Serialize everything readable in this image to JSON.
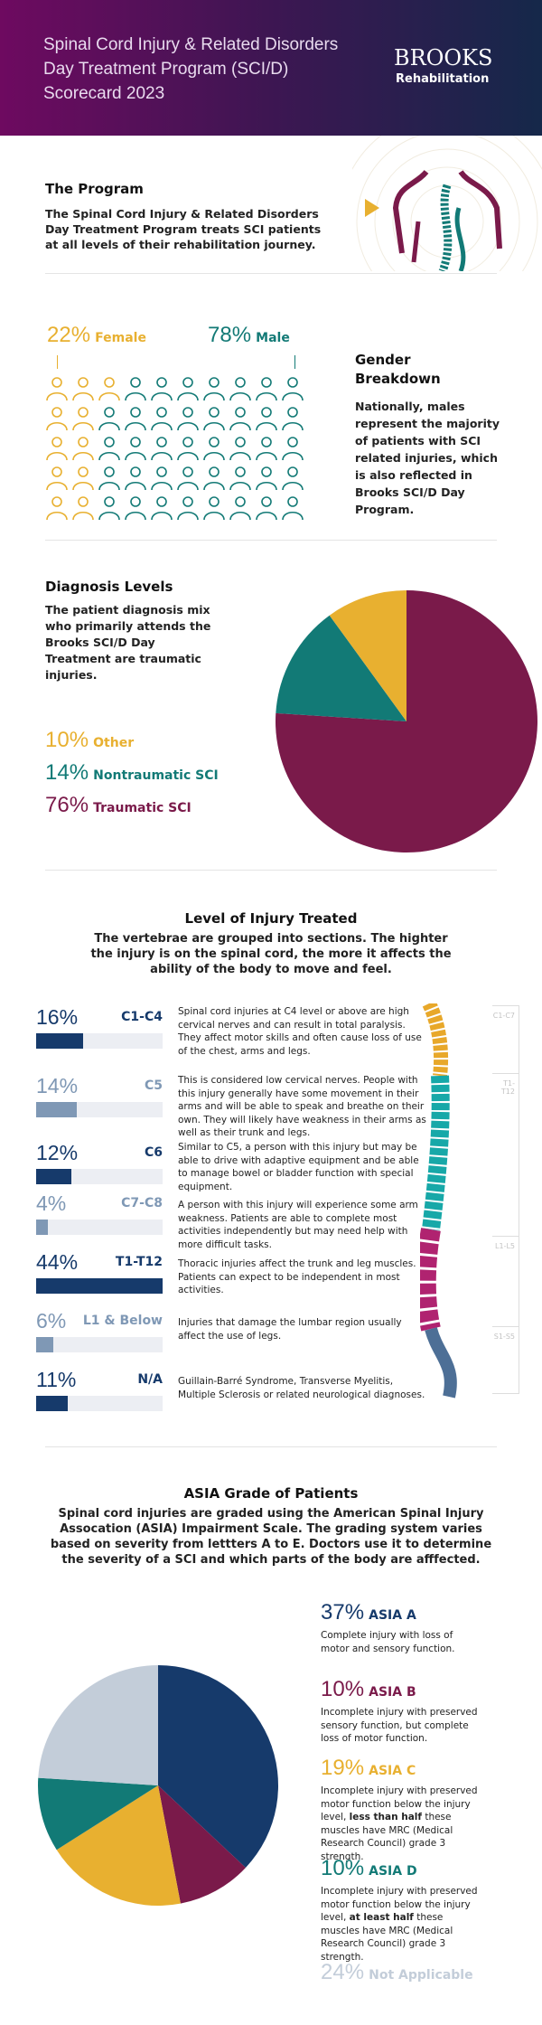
{
  "header": {
    "title": "Spinal Cord Injury & Related Disorders Day Treatment Program (SCI/D) Scorecard 2023",
    "logo_top": "BROOKS",
    "logo_bottom": "Rehabilitation"
  },
  "program": {
    "title": "The Program",
    "text": "The Spinal Cord Injury & Related Disorders Day Treatment Program treats SCI patients at all levels of their rehabilitation journey."
  },
  "gender": {
    "female_pct": "22%",
    "female_label": "Female",
    "male_pct": "78%",
    "male_label": "Male",
    "female_value": 22,
    "male_value": 78,
    "title": "Gender Breakdown",
    "text": "Nationally, males represent the majority of patients with SCI related injuries, which is also reflected in Brooks SCI/D Day Program.",
    "colors": {
      "female": "#e8b030",
      "male": "#137a76"
    }
  },
  "diagnosis": {
    "title": "Diagnosis Levels",
    "text": "The patient diagnosis mix who primarily attends the Brooks SCI/D  Day Treatment are traumatic injuries.",
    "items": [
      {
        "pct": "10%",
        "label": "Other",
        "value": 10,
        "color": "#e8b030"
      },
      {
        "pct": "14%",
        "label": "Nontraumatic SCI",
        "value": 14,
        "color": "#127a76"
      },
      {
        "pct": "76%",
        "label": "Traumatic SCI",
        "value": 76,
        "color": "#7a1a4a"
      }
    ]
  },
  "injury": {
    "title": "Level of Injury Treated",
    "subtitle": "The vertebrae are grouped into sections. The highter the injury is on the spinal cord, the more it affects the ability of the body to move and feel.",
    "rows": [
      {
        "pct": "16%",
        "value": 16,
        "label": "C1-C4",
        "color": "#163a6b",
        "text": "Spinal cord injuries at C4 level or above are high cervical nerves and can result in total paralysis. They affect motor skills and often cause loss of use of the chest, arms and legs."
      },
      {
        "pct": "14%",
        "value": 14,
        "label": "C5",
        "color": "#7f98b5",
        "text": "This is considered low cervical nerves. People with this injury generally have some movement in their arms and will be able to speak and breathe on their own. They will likely have weakness in their arms as well as their trunk and legs."
      },
      {
        "pct": "12%",
        "value": 12,
        "label": "C6",
        "color": "#163a6b",
        "text": "Similar to C5, a person with this injury but may be able to drive with adaptive equipment and be able to manage bowel or bladder function with special equipment."
      },
      {
        "pct": "4%",
        "value": 4,
        "label": "C7-C8",
        "color": "#7f98b5",
        "text": "A person with this injury will experience some arm weakness. Patients are able to complete most activities independently but may need help with more difficult tasks."
      },
      {
        "pct": "44%",
        "value": 44,
        "label": "T1-T12",
        "color": "#163a6b",
        "text": "Thoracic injuries affect the trunk and leg muscles. Patients can expect to be independent in most activities."
      },
      {
        "pct": "6%",
        "value": 6,
        "label": "L1 & Below",
        "color": "#7f98b5",
        "text": "Injuries that damage the lumbar region usually affect the use of legs."
      },
      {
        "pct": "11%",
        "value": 11,
        "label": "N/A",
        "color": "#163a6b",
        "text": "Guillain-Barré Syndrome, Transverse Myelitis, Multiple Sclerosis or related neurological diagnoses."
      }
    ],
    "spine_labels": [
      "C1-C7",
      "T1-T12",
      "L1-L5",
      "S1-S5"
    ]
  },
  "asia": {
    "title": "ASIA Grade of Patients",
    "subtitle": "Spinal cord injuries are graded using the American Spinal Injury Assocation (ASIA) Impairment Scale. The grading system varies based on severity from lettters A to E. Doctors use it to determine the severity of a SCI and which parts of the body are afffected.",
    "items": [
      {
        "pct": "37%",
        "value": 37,
        "label": "ASIA A",
        "color": "#163a6b",
        "text": "Complete injury with loss of motor and sensory function."
      },
      {
        "pct": "10%",
        "value": 10,
        "label": "ASIA B",
        "color": "#7a1a4a",
        "text": "Incomplete injury with preserved sensory function, but complete loss of motor function."
      },
      {
        "pct": "19%",
        "value": 19,
        "label": "ASIA C",
        "color": "#e8b030",
        "text_pre": "Incomplete injury with preserved motor function below the injury level, ",
        "text_bold": "less than half",
        "text_post": " these muscles have MRC (Medical Research Council) grade 3 strength."
      },
      {
        "pct": "10%",
        "value": 10,
        "label": "ASIA D",
        "color": "#127a76",
        "text_pre": "Incomplete injury with preserved motor function below the injury level, ",
        "text_bold": "at least half",
        "text_post": " these muscles have MRC (Medical Research Council) grade 3 strength."
      },
      {
        "pct": "24%",
        "value": 24,
        "label": "Not Applicable",
        "color": "#c3cdd9"
      }
    ]
  }
}
